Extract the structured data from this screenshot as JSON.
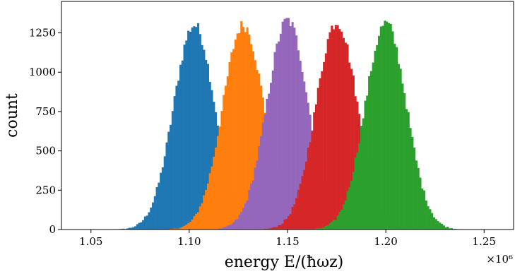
{
  "chart_data": {
    "type": "histogram",
    "xlabel": "energy E/(ħωz)",
    "ylabel": "count",
    "x_offset_label": "×10⁶",
    "xlim": [
      1.035,
      1.265
    ],
    "ylim": [
      0,
      1450
    ],
    "xticks": [
      1.05,
      1.1,
      1.15,
      1.2,
      1.25
    ],
    "xtick_labels": [
      "1.05",
      "1.10",
      "1.15",
      "1.20",
      "1.25"
    ],
    "yticks": [
      0,
      250,
      500,
      750,
      1000,
      1250
    ],
    "ytick_labels": [
      "0",
      "250",
      "500",
      "750",
      "1000",
      "1250"
    ],
    "grid": false,
    "legend": "none",
    "bin_width": 0.001,
    "series": [
      {
        "color": "#1f77b4",
        "center": 1.1025,
        "peak": 1300,
        "sigma": 0.0105,
        "x_start": 1.047,
        "x_end": 1.155
      },
      {
        "color": "#ff7f0e",
        "center": 1.1275,
        "peak": 1300,
        "sigma": 0.0105,
        "x_start": 1.08,
        "x_end": 1.176
      },
      {
        "color": "#9467bd",
        "center": 1.15,
        "peak": 1330,
        "sigma": 0.0105,
        "x_start": 1.1,
        "x_end": 1.203
      },
      {
        "color": "#d62728",
        "center": 1.175,
        "peak": 1320,
        "sigma": 0.0105,
        "x_start": 1.12,
        "x_end": 1.226
      },
      {
        "color": "#2ca02c",
        "center": 1.2,
        "peak": 1310,
        "sigma": 0.0105,
        "x_start": 1.15,
        "x_end": 1.262
      }
    ]
  }
}
